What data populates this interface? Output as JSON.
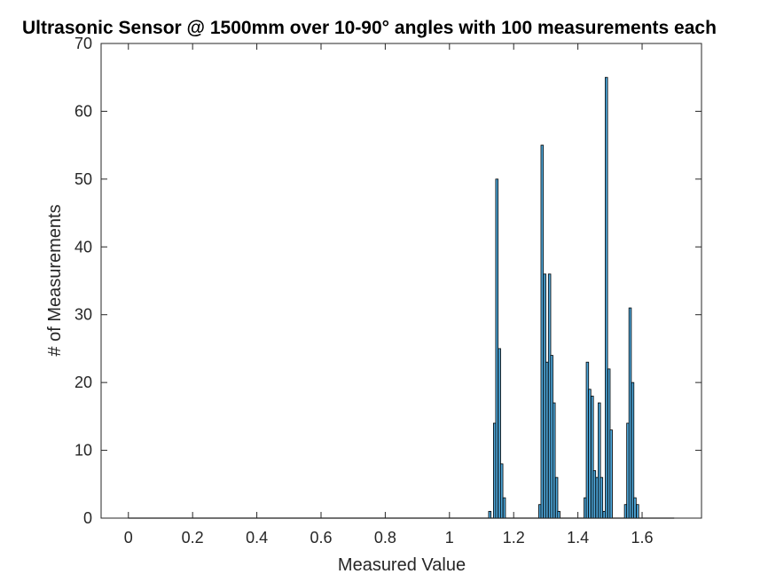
{
  "chart_data": {
    "type": "bar",
    "title": "Ultrasonic Sensor @ 1500mm over 10-90° angles with 100 measurements each",
    "xlabel": "Measured Value",
    "ylabel": "# of Measurements",
    "xlim": [
      -0.085,
      1.785
    ],
    "ylim": [
      0,
      70
    ],
    "xticks": [
      0,
      0.2,
      0.4,
      0.6,
      0.8,
      1,
      1.2,
      1.4,
      1.6
    ],
    "xtick_labels": [
      "0",
      "0.2",
      "0.4",
      "0.6",
      "0.8",
      "1",
      "1.2",
      "1.4",
      "1.6"
    ],
    "yticks": [
      0,
      10,
      20,
      30,
      40,
      50,
      60,
      70
    ],
    "ytick_labels": [
      "0",
      "10",
      "20",
      "30",
      "40",
      "50",
      "60",
      "70"
    ],
    "grid": false,
    "bar_color": "#4da6d9",
    "edge_color": "#000000",
    "bins": {
      "start": 0,
      "end": 1.7,
      "width": 0.00742
    },
    "bars": [
      {
        "x": 1.122,
        "value": 1
      },
      {
        "x": 1.137,
        "value": 14
      },
      {
        "x": 1.144,
        "value": 50
      },
      {
        "x": 1.152,
        "value": 25
      },
      {
        "x": 1.159,
        "value": 8
      },
      {
        "x": 1.167,
        "value": 3
      },
      {
        "x": 1.278,
        "value": 2
      },
      {
        "x": 1.285,
        "value": 55
      },
      {
        "x": 1.293,
        "value": 36
      },
      {
        "x": 1.3,
        "value": 23
      },
      {
        "x": 1.308,
        "value": 36
      },
      {
        "x": 1.315,
        "value": 24
      },
      {
        "x": 1.322,
        "value": 17
      },
      {
        "x": 1.33,
        "value": 6
      },
      {
        "x": 1.337,
        "value": 1
      },
      {
        "x": 1.419,
        "value": 3
      },
      {
        "x": 1.426,
        "value": 23
      },
      {
        "x": 1.433,
        "value": 19
      },
      {
        "x": 1.441,
        "value": 18
      },
      {
        "x": 1.448,
        "value": 7
      },
      {
        "x": 1.456,
        "value": 6
      },
      {
        "x": 1.463,
        "value": 17
      },
      {
        "x": 1.47,
        "value": 6
      },
      {
        "x": 1.478,
        "value": 1
      },
      {
        "x": 1.485,
        "value": 65
      },
      {
        "x": 1.493,
        "value": 22
      },
      {
        "x": 1.5,
        "value": 13
      },
      {
        "x": 1.545,
        "value": 2
      },
      {
        "x": 1.552,
        "value": 14
      },
      {
        "x": 1.559,
        "value": 31
      },
      {
        "x": 1.567,
        "value": 20
      },
      {
        "x": 1.574,
        "value": 3
      },
      {
        "x": 1.582,
        "value": 2
      }
    ]
  }
}
